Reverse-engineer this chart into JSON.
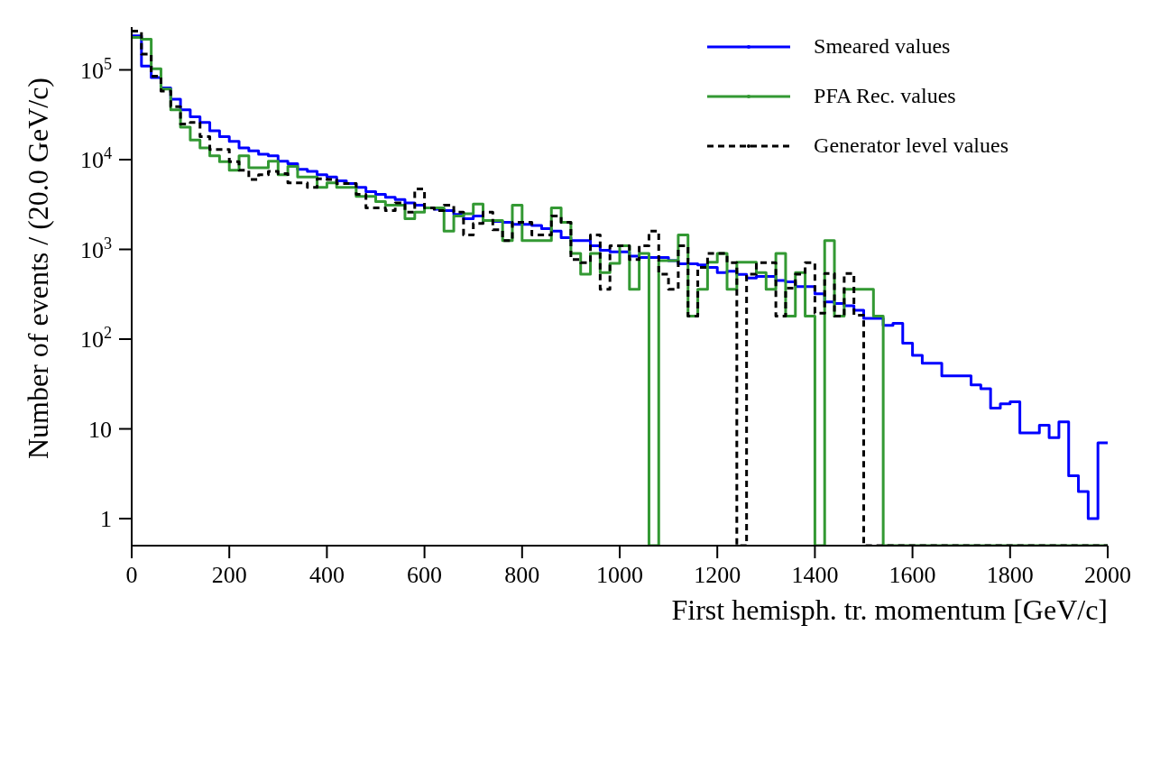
{
  "chart_data": {
    "type": "histogram",
    "xlabel": "First hemisph. tr. momentum [GeV/c]",
    "ylabel": "Number of events / (20.0 GeV/c)",
    "bins": [
      0,
      20,
      40,
      60,
      80,
      100,
      120,
      140,
      160,
      180,
      200,
      220,
      240,
      260,
      280,
      300,
      320,
      340,
      360,
      380,
      400,
      420,
      440,
      460,
      480,
      500,
      520,
      540,
      560,
      580,
      600,
      620,
      640,
      660,
      680,
      700,
      720,
      740,
      760,
      780,
      800,
      820,
      840,
      860,
      880,
      900,
      920,
      940,
      960,
      980,
      1000,
      1020,
      1040,
      1060,
      1080,
      1100,
      1120,
      1140,
      1160,
      1180,
      1200,
      1220,
      1240,
      1260,
      1280,
      1300,
      1320,
      1340,
      1360,
      1380,
      1400,
      1420,
      1440,
      1460,
      1480,
      1500,
      1520,
      1540,
      1560,
      1580,
      1600,
      1620,
      1640,
      1660,
      1680,
      1700,
      1720,
      1740,
      1760,
      1780,
      1800,
      1820,
      1840,
      1860,
      1880,
      1900,
      1920,
      1940,
      1960,
      1980,
      2000
    ],
    "series": [
      {
        "name": "Smeared values",
        "color": "#0000ff",
        "values": [
          240000,
          110000,
          82000,
          63000,
          47000,
          36000,
          30000,
          26000,
          21000,
          18000,
          16000,
          13500,
          12500,
          11500,
          11000,
          9600,
          9000,
          7800,
          7400,
          6800,
          6400,
          5800,
          5400,
          4900,
          4400,
          4100,
          3800,
          3600,
          3300,
          3100,
          2900,
          2800,
          2700,
          2450,
          2200,
          2350,
          2100,
          2050,
          2000,
          1900,
          1900,
          1850,
          1700,
          1600,
          1350,
          1250,
          1250,
          1100,
          975,
          940,
          940,
          840,
          810,
          810,
          810,
          750,
          690,
          690,
          670,
          630,
          550,
          570,
          525,
          480,
          500,
          500,
          450,
          435,
          385,
          385,
          320,
          260,
          250,
          235,
          210,
          170,
          170,
          142,
          150,
          90,
          66,
          54,
          54,
          39,
          39,
          39,
          31,
          28,
          17,
          19,
          20,
          9,
          9,
          11,
          8,
          12,
          3,
          2,
          1,
          7
        ]
      },
      {
        "name": "PFA Rec. values",
        "color": "#339933",
        "values": [
          230000,
          220000,
          103000,
          61000,
          36000,
          23000,
          16500,
          13500,
          11000,
          9500,
          7600,
          11000,
          8100,
          8100,
          9600,
          6800,
          8400,
          6400,
          6400,
          4900,
          5500,
          4900,
          4900,
          3900,
          3900,
          3400,
          3100,
          3100,
          2200,
          2600,
          2900,
          2900,
          1600,
          2350,
          2500,
          3200,
          2100,
          2100,
          1250,
          3100,
          1250,
          1250,
          1250,
          2900,
          2000,
          900,
          530,
          900,
          550,
          700,
          1100,
          360,
          900,
          null,
          750,
          750,
          1450,
          180,
          360,
          720,
          900,
          360,
          720,
          720,
          550,
          360,
          900,
          180,
          550,
          180,
          null,
          1250,
          180,
          360,
          360,
          360,
          180,
          null,
          null,
          null,
          null,
          null,
          null,
          null,
          null,
          null,
          null,
          null,
          null,
          null,
          null,
          null,
          null,
          null,
          null,
          null,
          null,
          null,
          null,
          null
        ]
      },
      {
        "name": "Generator level values",
        "color": "#000000",
        "line_style": "dashed",
        "values": [
          270000,
          150000,
          85000,
          58000,
          39000,
          25000,
          26000,
          18000,
          13000,
          13000,
          9500,
          7600,
          6000,
          6800,
          7400,
          7000,
          5500,
          5500,
          4900,
          6100,
          6000,
          5400,
          5400,
          4100,
          2900,
          2900,
          2700,
          3300,
          2600,
          4700,
          2900,
          2700,
          3100,
          2600,
          1450,
          1950,
          2600,
          1650,
          1250,
          2000,
          2000,
          1450,
          1450,
          2350,
          2000,
          770,
          710,
          1450,
          360,
          1100,
          1100,
          770,
          1100,
          1600,
          530,
          360,
          1100,
          180,
          630,
          900,
          900,
          710,
          null,
          530,
          710,
          710,
          180,
          370,
          530,
          710,
          195,
          540,
          180,
          540,
          185,
          null,
          null,
          null,
          null,
          null,
          null,
          null,
          null,
          null,
          null,
          null,
          null,
          null,
          null,
          null,
          null,
          null,
          null,
          null,
          null,
          null,
          null,
          null,
          null,
          null
        ]
      }
    ],
    "xlim": [
      0,
      2000
    ],
    "xticks": [
      0,
      200,
      400,
      600,
      800,
      1000,
      1200,
      1400,
      1600,
      1800,
      2000
    ],
    "ylim": [
      0.5,
      300000
    ],
    "yticks": [
      1,
      10,
      {
        "value": 100,
        "label": "10$^{2}$"
      },
      {
        "value": 1000,
        "label": "10$^{3}$"
      },
      {
        "value": 10000,
        "label": "10$^{4}$"
      },
      {
        "value": 100000,
        "label": "10$^{5}$"
      }
    ],
    "log": true,
    "grid": false,
    "legend": "top right"
  }
}
